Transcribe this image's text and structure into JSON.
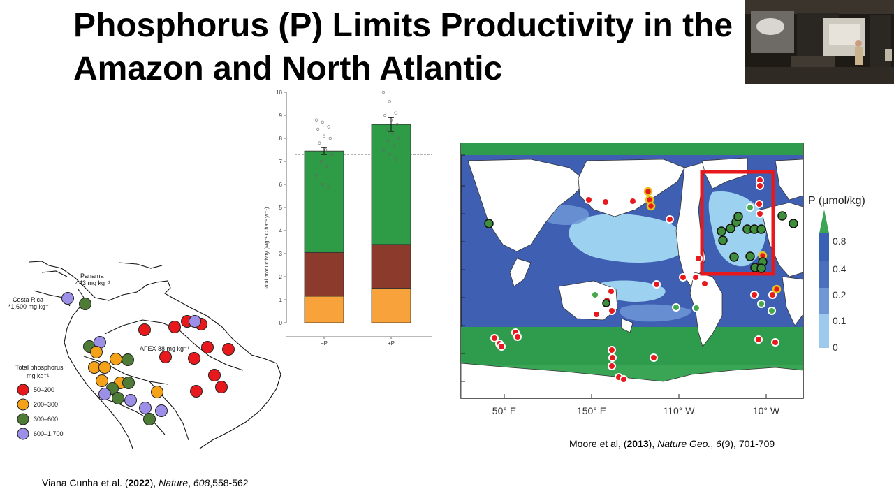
{
  "slide": {
    "title_line1": "Phosphorus (P) Limits Productivity in the",
    "title_line2": "Amazon and North Atlantic"
  },
  "amazon_map": {
    "labels": {
      "panama_name": "Panama",
      "panama_value": "443 mg kg⁻¹",
      "costa_rica_name": "Costa Rica",
      "costa_rica_value": "*1,600 mg kg⁻¹",
      "afex": "AFEX 88 mg kg⁻¹"
    },
    "legend": {
      "title_line1": "Total phosphorus",
      "title_line2": "mg kg⁻¹",
      "items": [
        {
          "label": "50–200",
          "color": "#e8191c"
        },
        {
          "label": "200–300",
          "color": "#f5a21b"
        },
        {
          "label": "300–600",
          "color": "#4e7b35"
        },
        {
          "label": "600–1,700",
          "color": "#9b8fe8"
        }
      ]
    },
    "colors": {
      "red": "#e8191c",
      "orange": "#f5a21b",
      "green": "#4e7b35",
      "purple": "#9b8fe8"
    }
  },
  "chart_data": {
    "type": "bar",
    "stacked": true,
    "categories": [
      "−P",
      "+P"
    ],
    "ylabel": "Total productivity (Mg⁻¹ C ha⁻¹ yr⁻¹)",
    "ylim": [
      0,
      10
    ],
    "yticks": [
      "0",
      "1",
      "2",
      "3",
      "4",
      "5",
      "6",
      "7",
      "8",
      "9",
      "10"
    ],
    "series": [
      {
        "color": "#f7a23a",
        "values": [
          1.15,
          1.5
        ]
      },
      {
        "color": "#8b3a2b",
        "values": [
          1.9,
          1.9
        ]
      },
      {
        "color": "#2e9b47",
        "values": [
          4.4,
          5.2
        ]
      }
    ],
    "totals": [
      7.45,
      8.6
    ],
    "error": [
      0.15,
      0.3
    ],
    "reference_line": 7.3,
    "points": [
      [
        8.8,
        8.7,
        8.5,
        8.4,
        8.1,
        8.0,
        7.8,
        7.5,
        7.3,
        7.0,
        6.8,
        6.4,
        6.0,
        5.9
      ],
      [
        10.0,
        9.6,
        9.1,
        9.0,
        8.8,
        8.6,
        8.4,
        8.2,
        8.0,
        7.9,
        7.7,
        7.5,
        7.3,
        7.1
      ]
    ]
  },
  "ocean_map": {
    "axis_labels": [
      "50° E",
      "150° E",
      "110° W",
      "10° W"
    ],
    "legend_title": "P (μmol/kg)",
    "legend_ticks": [
      "0.8",
      "0.4",
      "0.2",
      "0.1",
      "0"
    ],
    "legend_colors": [
      "#3aa655",
      "#3a62b4",
      "#4a6fbe",
      "#6f97d6",
      "#9cc9ec"
    ]
  },
  "citations": {
    "viana": {
      "authors": "Viana Cunha et al. (",
      "year": "2022",
      "mid": "), ",
      "journal": "Nature",
      "sep": ", ",
      "volume": "608",
      "pages": ",558-562"
    },
    "moore": {
      "authors": "Moore et al, (",
      "year": "2013",
      "mid": "), ",
      "journal": "Nature Geo.",
      "sep": ", ",
      "volume": "6",
      "pages": "(9), 701-709"
    }
  }
}
